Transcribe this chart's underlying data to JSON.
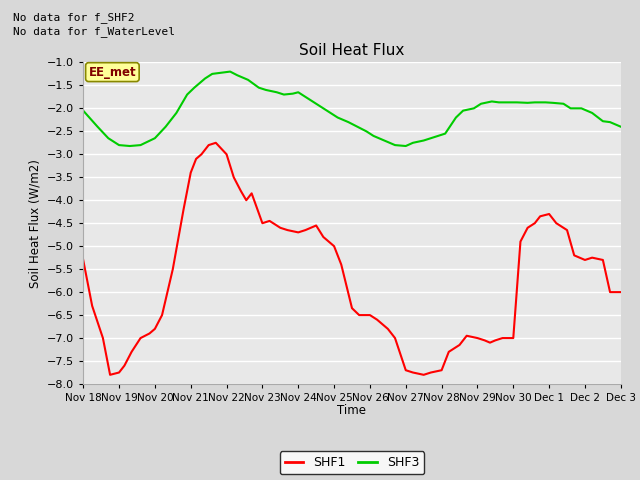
{
  "title": "Soil Heat Flux",
  "ylabel": "Soil Heat Flux (W/m2)",
  "xlabel": "Time",
  "ylim": [
    -8.0,
    -1.0
  ],
  "annotation_lines": [
    "No data for f_SHF2",
    "No data for f_WaterLevel"
  ],
  "box_label": "EE_met",
  "xtick_labels": [
    "Nov 18",
    "Nov 19",
    "Nov 20",
    "Nov 21",
    "Nov 22",
    "Nov 23",
    "Nov 24",
    "Nov 25",
    "Nov 26",
    "Nov 27",
    "Nov 28",
    "Nov 29",
    "Nov 30",
    "Dec 1",
    "Dec 2",
    "Dec 3"
  ],
  "shf1_x": [
    0,
    0.25,
    0.55,
    0.75,
    1.0,
    1.15,
    1.35,
    1.6,
    1.85,
    2.0,
    2.2,
    2.5,
    2.8,
    3.0,
    3.15,
    3.3,
    3.5,
    3.7,
    4.0,
    4.2,
    4.4,
    4.55,
    4.7,
    5.0,
    5.2,
    5.5,
    5.7,
    6.0,
    6.2,
    6.5,
    6.7,
    7.0,
    7.2,
    7.5,
    7.7,
    8.0,
    8.2,
    8.5,
    8.7,
    9.0,
    9.2,
    9.5,
    9.7,
    10.0,
    10.2,
    10.5,
    10.7,
    11.0,
    11.2,
    11.35,
    11.5,
    11.7,
    11.85,
    12.0,
    12.2,
    12.4,
    12.6,
    12.75,
    13.0,
    13.2,
    13.5,
    13.7,
    14.0,
    14.2,
    14.5,
    14.7,
    15.0
  ],
  "shf1_y": [
    -5.3,
    -6.3,
    -7.0,
    -7.8,
    -7.75,
    -7.6,
    -7.3,
    -7.0,
    -6.9,
    -6.8,
    -6.5,
    -5.5,
    -4.2,
    -3.4,
    -3.1,
    -3.0,
    -2.8,
    -2.75,
    -3.0,
    -3.5,
    -3.8,
    -4.0,
    -3.85,
    -4.5,
    -4.45,
    -4.6,
    -4.65,
    -4.7,
    -4.65,
    -4.55,
    -4.8,
    -5.0,
    -5.4,
    -6.35,
    -6.5,
    -6.5,
    -6.6,
    -6.8,
    -7.0,
    -7.7,
    -7.75,
    -7.8,
    -7.75,
    -7.7,
    -7.3,
    -7.15,
    -6.95,
    -7.0,
    -7.05,
    -7.1,
    -7.05,
    -7.0,
    -7.0,
    -7.0,
    -4.9,
    -4.6,
    -4.5,
    -4.35,
    -4.3,
    -4.5,
    -4.65,
    -5.2,
    -5.3,
    -5.25,
    -5.3,
    -6.0,
    -6.0
  ],
  "shf3_x": [
    0,
    0.4,
    0.7,
    1.0,
    1.3,
    1.6,
    2.0,
    2.3,
    2.6,
    2.9,
    3.1,
    3.4,
    3.6,
    3.9,
    4.1,
    4.3,
    4.6,
    4.9,
    5.1,
    5.4,
    5.6,
    5.85,
    6.0,
    6.2,
    6.4,
    6.6,
    6.9,
    7.1,
    7.4,
    7.6,
    7.9,
    8.1,
    8.4,
    8.7,
    9.0,
    9.2,
    9.5,
    9.7,
    9.9,
    10.1,
    10.4,
    10.6,
    10.9,
    11.1,
    11.4,
    11.6,
    11.9,
    12.1,
    12.4,
    12.6,
    12.9,
    13.1,
    13.4,
    13.6,
    13.9,
    14.2,
    14.5,
    14.7,
    15.0
  ],
  "shf3_y": [
    -2.05,
    -2.4,
    -2.65,
    -2.8,
    -2.82,
    -2.8,
    -2.65,
    -2.4,
    -2.1,
    -1.7,
    -1.55,
    -1.35,
    -1.25,
    -1.22,
    -1.2,
    -1.28,
    -1.38,
    -1.55,
    -1.6,
    -1.65,
    -1.7,
    -1.68,
    -1.65,
    -1.75,
    -1.85,
    -1.95,
    -2.1,
    -2.2,
    -2.3,
    -2.38,
    -2.5,
    -2.6,
    -2.7,
    -2.8,
    -2.82,
    -2.75,
    -2.7,
    -2.65,
    -2.6,
    -2.55,
    -2.2,
    -2.05,
    -2.0,
    -1.9,
    -1.85,
    -1.87,
    -1.87,
    -1.87,
    -1.88,
    -1.87,
    -1.87,
    -1.88,
    -1.9,
    -2.0,
    -2.0,
    -2.1,
    -2.28,
    -2.3,
    -2.4
  ],
  "shf1_color": "#ff0000",
  "shf3_color": "#00cc00",
  "bg_color": "#d8d8d8",
  "plot_bg_color": "#e8e8e8",
  "grid_color": "#ffffff",
  "yticks": [
    -8.0,
    -7.5,
    -7.0,
    -6.5,
    -6.0,
    -5.5,
    -5.0,
    -4.5,
    -4.0,
    -3.5,
    -3.0,
    -2.5,
    -2.0,
    -1.5,
    -1.0
  ]
}
